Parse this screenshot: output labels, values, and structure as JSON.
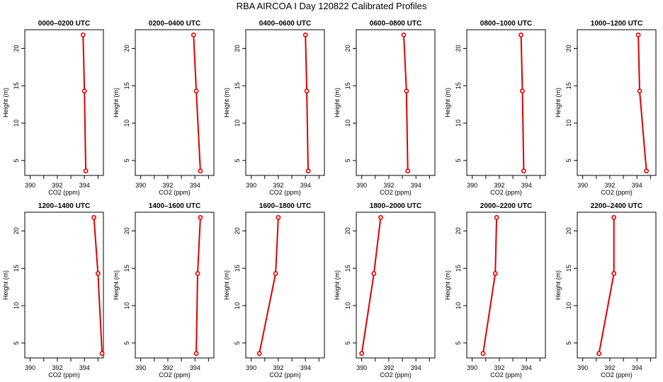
{
  "title": "RBA AIRCOA I  Day 120822  Calibrated Profiles",
  "chart_data": {
    "type": "line",
    "xlabel": "CO2 (ppm)",
    "ylabel": "Height (m)",
    "xlim": [
      389.6,
      395.4
    ],
    "ylim": [
      3.0,
      22.5
    ],
    "xticks": [
      390,
      392,
      394
    ],
    "x_minor_ticks": [
      391,
      393,
      395
    ],
    "yticks": [
      5,
      10,
      15,
      20
    ],
    "line_color": "#dd0000",
    "marker": "open-circle",
    "panels": [
      {
        "title": "0000–0200 UTC",
        "x": [
          394.1,
          394.0,
          393.9
        ],
        "y": [
          3.6,
          14.3,
          21.8
        ]
      },
      {
        "title": "0200–0400 UTC",
        "x": [
          394.4,
          394.1,
          393.9
        ],
        "y": [
          3.6,
          14.3,
          21.8
        ]
      },
      {
        "title": "0400–0600 UTC",
        "x": [
          394.2,
          394.1,
          394.0
        ],
        "y": [
          3.6,
          14.3,
          21.8
        ]
      },
      {
        "title": "0600–0800 UTC",
        "x": [
          393.4,
          393.3,
          393.1
        ],
        "y": [
          3.6,
          14.3,
          21.8
        ]
      },
      {
        "title": "0800–1000 UTC",
        "x": [
          393.8,
          393.7,
          393.6
        ],
        "y": [
          3.6,
          14.3,
          21.8
        ]
      },
      {
        "title": "1000–1200 UTC",
        "x": [
          394.7,
          394.2,
          394.1
        ],
        "y": [
          3.6,
          14.3,
          21.8
        ]
      },
      {
        "title": "1200–1400 UTC",
        "x": [
          395.3,
          395.0,
          394.7
        ],
        "y": [
          3.6,
          14.3,
          21.8
        ]
      },
      {
        "title": "1400–1600 UTC",
        "x": [
          394.1,
          394.2,
          394.4
        ],
        "y": [
          3.6,
          14.3,
          21.8
        ]
      },
      {
        "title": "1600–1800 UTC",
        "x": [
          390.6,
          391.8,
          392.0
        ],
        "y": [
          3.6,
          14.3,
          21.8
        ]
      },
      {
        "title": "1800–2000 UTC",
        "x": [
          390.0,
          390.9,
          391.4
        ],
        "y": [
          3.6,
          14.3,
          21.8
        ]
      },
      {
        "title": "2000–2200 UTC",
        "x": [
          390.8,
          391.7,
          391.8
        ],
        "y": [
          3.6,
          14.3,
          21.8
        ]
      },
      {
        "title": "2200–2400 UTC",
        "x": [
          391.2,
          392.3,
          392.3
        ],
        "y": [
          3.6,
          14.3,
          21.8
        ]
      }
    ]
  }
}
